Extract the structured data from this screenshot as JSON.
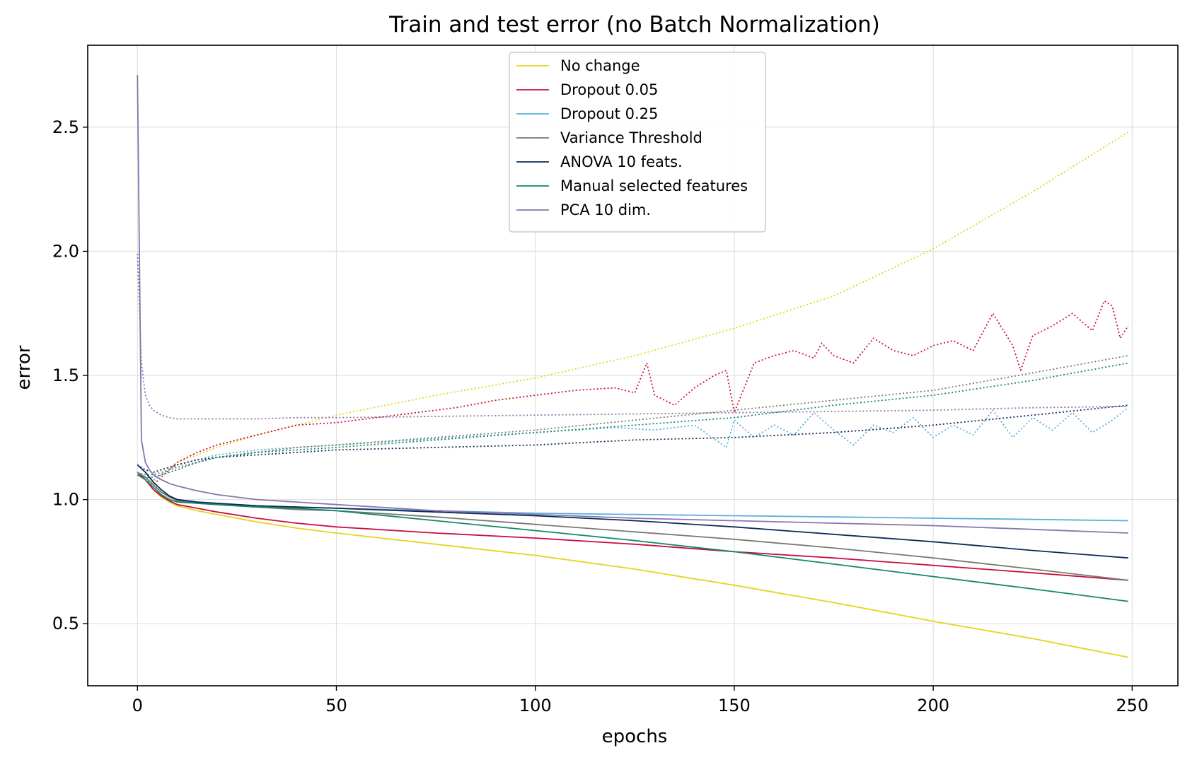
{
  "chart_data": {
    "type": "line",
    "title": "Train and test error (no Batch Normalization)",
    "xlabel": "epochs",
    "ylabel": "error",
    "xlim": [
      -12.5,
      261.5
    ],
    "ylim": [
      0.25,
      2.83
    ],
    "x_ticks": [
      0,
      50,
      100,
      150,
      200,
      250
    ],
    "y_ticks": [
      0.5,
      1.0,
      1.5,
      2.0,
      2.5
    ],
    "x_tick_labels": [
      "0",
      "50",
      "100",
      "150",
      "200",
      "250"
    ],
    "y_tick_labels": [
      "0.5",
      "1.0",
      "1.5",
      "2.0",
      "2.5"
    ],
    "grid": true,
    "legend_position": "upper center",
    "train_line_style": "solid",
    "test_line_style": "dotted",
    "series": [
      {
        "name": "No change",
        "color": "#e6d21e",
        "train": {
          "x": [
            0,
            2,
            4,
            6,
            8,
            10,
            15,
            20,
            30,
            40,
            50,
            75,
            100,
            125,
            150,
            175,
            200,
            225,
            249
          ],
          "y": [
            1.11,
            1.08,
            1.04,
            1.01,
            0.99,
            0.975,
            0.955,
            0.94,
            0.91,
            0.885,
            0.865,
            0.82,
            0.775,
            0.72,
            0.655,
            0.585,
            0.51,
            0.44,
            0.365
          ]
        },
        "test": {
          "x": [
            0,
            2,
            4,
            6,
            8,
            10,
            15,
            20,
            30,
            40,
            50,
            75,
            100,
            125,
            150,
            175,
            200,
            225,
            249
          ],
          "y": [
            1.11,
            1.08,
            1.07,
            1.1,
            1.13,
            1.15,
            1.18,
            1.21,
            1.26,
            1.3,
            1.34,
            1.42,
            1.49,
            1.58,
            1.69,
            1.82,
            2.01,
            2.24,
            2.48
          ]
        }
      },
      {
        "name": "Dropout 0.05",
        "color": "#c8103e",
        "train": {
          "x": [
            0,
            2,
            4,
            6,
            8,
            10,
            15,
            20,
            30,
            40,
            50,
            75,
            100,
            125,
            150,
            175,
            200,
            225,
            249
          ],
          "y": [
            1.11,
            1.08,
            1.04,
            1.015,
            0.995,
            0.98,
            0.965,
            0.95,
            0.925,
            0.905,
            0.89,
            0.865,
            0.845,
            0.82,
            0.79,
            0.765,
            0.735,
            0.705,
            0.675
          ]
        },
        "test": {
          "x": [
            0,
            2,
            4,
            6,
            8,
            10,
            15,
            20,
            30,
            40,
            50,
            60,
            70,
            80,
            90,
            100,
            110,
            120,
            125,
            128,
            130,
            135,
            140,
            145,
            148,
            150,
            155,
            160,
            165,
            170,
            172,
            175,
            180,
            185,
            190,
            195,
            200,
            205,
            210,
            215,
            220,
            222,
            225,
            230,
            235,
            240,
            243,
            245,
            247,
            249
          ],
          "y": [
            1.11,
            1.08,
            1.06,
            1.09,
            1.12,
            1.15,
            1.19,
            1.22,
            1.26,
            1.3,
            1.31,
            1.33,
            1.35,
            1.37,
            1.4,
            1.42,
            1.44,
            1.45,
            1.43,
            1.55,
            1.42,
            1.38,
            1.45,
            1.5,
            1.52,
            1.35,
            1.55,
            1.58,
            1.6,
            1.57,
            1.63,
            1.58,
            1.55,
            1.65,
            1.6,
            1.58,
            1.62,
            1.64,
            1.6,
            1.75,
            1.62,
            1.52,
            1.66,
            1.7,
            1.75,
            1.68,
            1.8,
            1.78,
            1.65,
            1.7
          ]
        }
      },
      {
        "name": "Dropout 0.25",
        "color": "#5aaedc",
        "train": {
          "x": [
            0,
            2,
            4,
            6,
            8,
            10,
            15,
            20,
            30,
            40,
            50,
            75,
            100,
            125,
            150,
            175,
            200,
            225,
            249
          ],
          "y": [
            1.11,
            1.09,
            1.06,
            1.03,
            1.015,
            1.0,
            0.99,
            0.985,
            0.975,
            0.97,
            0.965,
            0.955,
            0.945,
            0.94,
            0.935,
            0.93,
            0.925,
            0.92,
            0.915
          ]
        },
        "test": {
          "x": [
            0,
            2,
            4,
            6,
            8,
            10,
            15,
            20,
            30,
            40,
            50,
            60,
            70,
            80,
            90,
            100,
            110,
            120,
            130,
            140,
            148,
            150,
            155,
            160,
            165,
            170,
            175,
            180,
            185,
            190,
            195,
            200,
            205,
            210,
            215,
            220,
            225,
            230,
            235,
            240,
            245,
            249
          ],
          "y": [
            1.11,
            1.09,
            1.08,
            1.1,
            1.12,
            1.14,
            1.16,
            1.18,
            1.2,
            1.21,
            1.22,
            1.23,
            1.24,
            1.25,
            1.26,
            1.27,
            1.28,
            1.29,
            1.28,
            1.3,
            1.21,
            1.32,
            1.25,
            1.3,
            1.26,
            1.35,
            1.28,
            1.22,
            1.3,
            1.27,
            1.33,
            1.25,
            1.3,
            1.26,
            1.36,
            1.25,
            1.33,
            1.28,
            1.35,
            1.27,
            1.32,
            1.37
          ]
        }
      },
      {
        "name": "Variance Threshold",
        "color": "#7a7a72",
        "train": {
          "x": [
            0,
            2,
            4,
            6,
            8,
            10,
            15,
            20,
            30,
            40,
            50,
            75,
            100,
            125,
            150,
            175,
            200,
            225,
            249
          ],
          "y": [
            1.11,
            1.09,
            1.06,
            1.03,
            1.01,
            0.995,
            0.985,
            0.98,
            0.97,
            0.96,
            0.955,
            0.93,
            0.9,
            0.87,
            0.84,
            0.805,
            0.765,
            0.72,
            0.675
          ]
        },
        "test": {
          "x": [
            0,
            2,
            4,
            6,
            8,
            10,
            15,
            20,
            30,
            40,
            50,
            75,
            100,
            125,
            150,
            175,
            200,
            225,
            249
          ],
          "y": [
            1.11,
            1.1,
            1.1,
            1.11,
            1.12,
            1.13,
            1.15,
            1.17,
            1.19,
            1.21,
            1.22,
            1.25,
            1.28,
            1.32,
            1.36,
            1.4,
            1.44,
            1.51,
            1.58
          ]
        }
      },
      {
        "name": "ANOVA 10 feats.",
        "color": "#0d2b57",
        "train": {
          "x": [
            0,
            2,
            4,
            6,
            8,
            10,
            15,
            20,
            30,
            40,
            50,
            75,
            100,
            125,
            150,
            175,
            200,
            225,
            249
          ],
          "y": [
            1.14,
            1.11,
            1.07,
            1.04,
            1.015,
            1.0,
            0.99,
            0.985,
            0.975,
            0.97,
            0.965,
            0.95,
            0.935,
            0.915,
            0.89,
            0.86,
            0.83,
            0.795,
            0.765
          ]
        },
        "test": {
          "x": [
            0,
            2,
            4,
            6,
            8,
            10,
            15,
            20,
            30,
            40,
            50,
            75,
            100,
            125,
            150,
            175,
            200,
            225,
            249
          ],
          "y": [
            1.14,
            1.12,
            1.11,
            1.12,
            1.13,
            1.14,
            1.16,
            1.17,
            1.18,
            1.19,
            1.2,
            1.21,
            1.22,
            1.24,
            1.25,
            1.27,
            1.3,
            1.34,
            1.38
          ]
        }
      },
      {
        "name": "Manual selected features",
        "color": "#11876a",
        "train": {
          "x": [
            0,
            2,
            4,
            6,
            8,
            10,
            15,
            20,
            30,
            40,
            50,
            75,
            100,
            125,
            150,
            175,
            200,
            225,
            249
          ],
          "y": [
            1.1,
            1.08,
            1.05,
            1.02,
            1.0,
            0.99,
            0.985,
            0.98,
            0.97,
            0.965,
            0.955,
            0.915,
            0.875,
            0.835,
            0.79,
            0.74,
            0.69,
            0.64,
            0.59
          ]
        },
        "test": {
          "x": [
            0,
            2,
            4,
            6,
            8,
            10,
            15,
            20,
            30,
            40,
            50,
            75,
            100,
            125,
            150,
            175,
            200,
            225,
            249
          ],
          "y": [
            1.1,
            1.09,
            1.09,
            1.1,
            1.11,
            1.12,
            1.15,
            1.17,
            1.19,
            1.2,
            1.21,
            1.24,
            1.27,
            1.3,
            1.33,
            1.38,
            1.42,
            1.48,
            1.55
          ]
        }
      },
      {
        "name": "PCA 10 dim.",
        "color": "#8a74ad",
        "train": {
          "x": [
            0,
            1,
            2,
            3,
            4,
            5,
            6,
            8,
            10,
            15,
            20,
            30,
            40,
            50,
            75,
            100,
            125,
            150,
            175,
            200,
            225,
            249
          ],
          "y": [
            2.71,
            1.24,
            1.15,
            1.12,
            1.1,
            1.09,
            1.08,
            1.065,
            1.055,
            1.035,
            1.02,
            1.0,
            0.99,
            0.98,
            0.955,
            0.94,
            0.925,
            0.915,
            0.905,
            0.895,
            0.88,
            0.865
          ]
        },
        "test": {
          "x": [
            0,
            1,
            2,
            3,
            4,
            5,
            6,
            8,
            10,
            15,
            20,
            30,
            40,
            50,
            75,
            100,
            125,
            150,
            175,
            200,
            225,
            249
          ],
          "y": [
            1.99,
            1.55,
            1.42,
            1.38,
            1.36,
            1.35,
            1.34,
            1.33,
            1.325,
            1.325,
            1.325,
            1.325,
            1.33,
            1.33,
            1.335,
            1.34,
            1.345,
            1.35,
            1.355,
            1.36,
            1.37,
            1.375
          ]
        }
      }
    ]
  }
}
